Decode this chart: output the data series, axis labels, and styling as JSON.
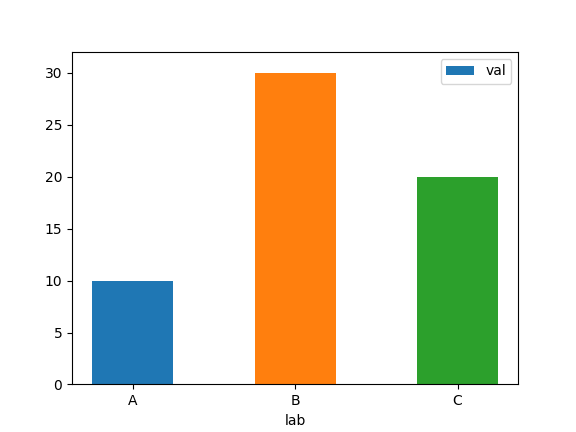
{
  "categories": [
    "A",
    "B",
    "C"
  ],
  "values": [
    10,
    30,
    20
  ],
  "bar_colors": [
    "#1f77b4",
    "#ff7f0e",
    "#2ca02c"
  ],
  "xlabel": "lab",
  "ylabel": "",
  "legend_label": "val",
  "ylim": [
    0,
    32
  ],
  "yticks": [
    0,
    5,
    10,
    15,
    20,
    25,
    30
  ],
  "figsize": [
    5.76,
    4.32
  ],
  "dpi": 100,
  "bar_width": 0.5
}
